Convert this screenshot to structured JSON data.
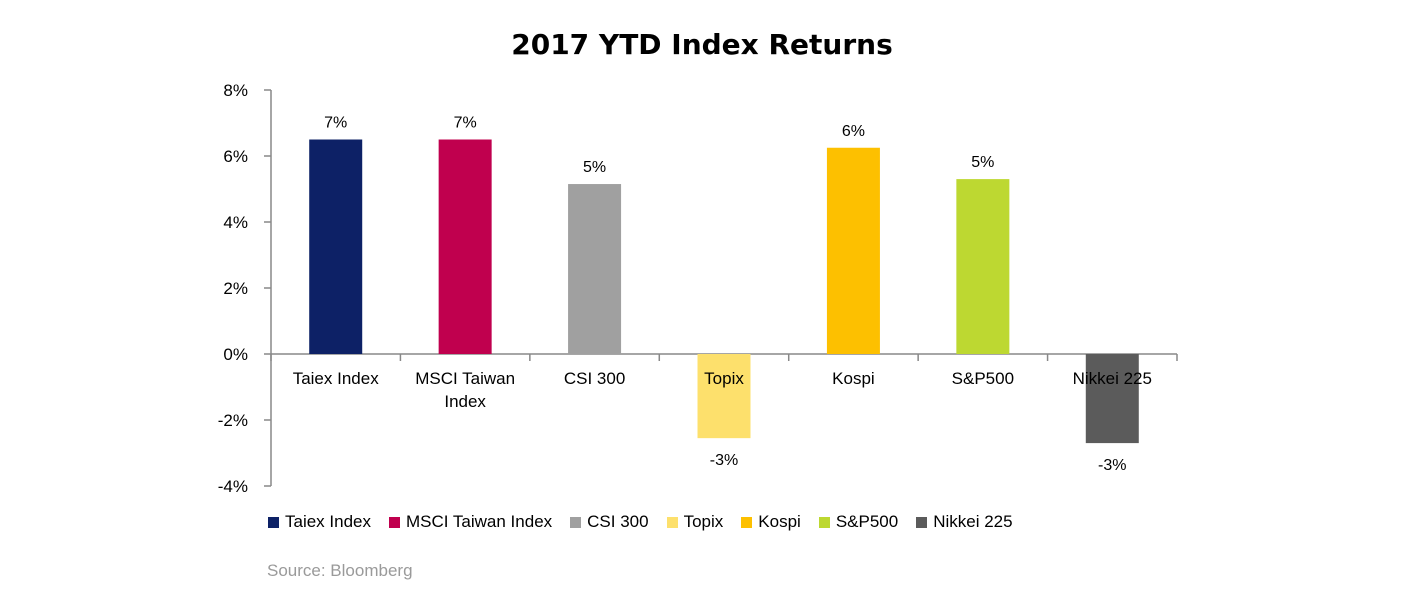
{
  "chart_data": {
    "type": "bar",
    "title": "2017 YTD Index Returns",
    "categories": [
      "Taiex Index",
      "MSCI Taiwan Index",
      "CSI 300",
      "Topix",
      "Kospi",
      "S&P500",
      "Nikkei 225"
    ],
    "category_lines": [
      [
        "Taiex Index"
      ],
      [
        "MSCI Taiwan",
        "Index"
      ],
      [
        "CSI 300"
      ],
      [
        "Topix"
      ],
      [
        "Kospi"
      ],
      [
        "S&P500"
      ],
      [
        "Nikkei 225"
      ]
    ],
    "values": [
      6.5,
      6.5,
      5.15,
      -2.55,
      6.25,
      5.3,
      -2.7
    ],
    "data_labels": [
      "7%",
      "7%",
      "5%",
      "-3%",
      "6%",
      "5%",
      "-3%"
    ],
    "colors": [
      "#0d2166",
      "#c0004e",
      "#a0a0a0",
      "#fde06c",
      "#fdc000",
      "#bdd831",
      "#5b5b5b"
    ],
    "ylim": [
      -4,
      8
    ],
    "yticks": [
      8,
      6,
      4,
      2,
      0,
      -2,
      -4
    ],
    "ytick_labels": [
      "8%",
      "6%",
      "4%",
      "2%",
      "0%",
      "-2%",
      "-4%"
    ],
    "xlabel": "",
    "ylabel": "",
    "grid": false,
    "legend": {
      "position": "bottom",
      "entries": [
        "Taiex Index",
        "MSCI Taiwan Index",
        "CSI 300",
        "Topix",
        "Kospi",
        "S&P500",
        "Nikkei 225"
      ]
    },
    "source": "Source: Bloomberg"
  }
}
